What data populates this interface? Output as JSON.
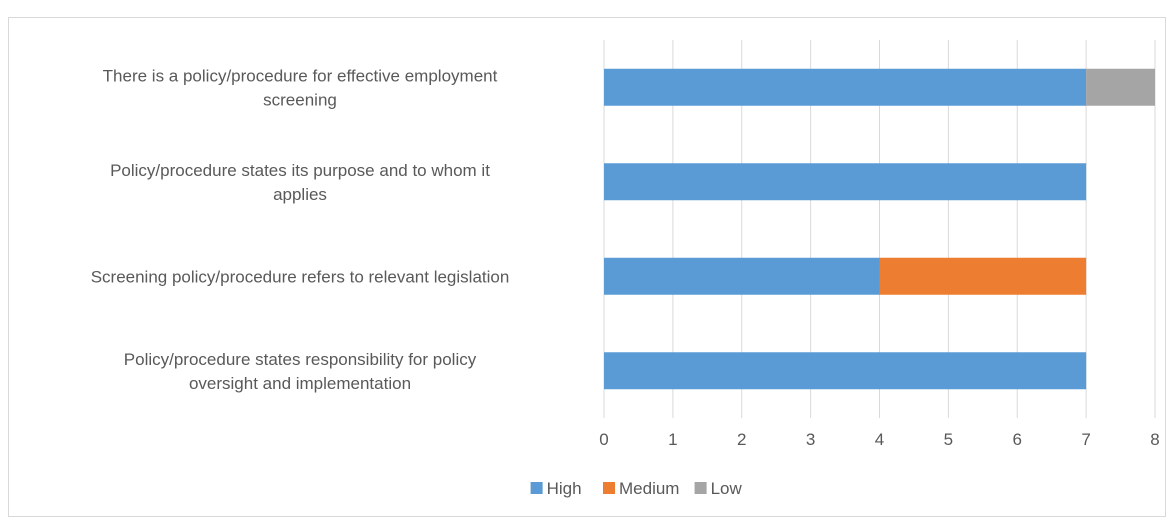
{
  "chart_data": {
    "type": "bar",
    "orientation": "horizontal",
    "stacked": true,
    "categories": [
      [
        "There is a policy/procedure for effective employment",
        "screening"
      ],
      [
        "Policy/procedure states its purpose and to whom it",
        "applies"
      ],
      [
        "Screening policy/procedure refers to relevant legislation"
      ],
      [
        "Policy/procedure states responsibility for policy",
        "oversight and implementation"
      ]
    ],
    "series": [
      {
        "name": "High",
        "color": "#5b9bd5",
        "values": [
          7,
          7,
          4,
          7
        ]
      },
      {
        "name": "Medium",
        "color": "#ed7d31",
        "values": [
          0,
          0,
          3,
          0
        ]
      },
      {
        "name": "Low",
        "color": "#a5a5a5",
        "values": [
          1,
          0,
          0,
          0
        ]
      }
    ],
    "xlim": [
      0,
      8
    ],
    "xticks": [
      "0",
      "1",
      "2",
      "3",
      "4",
      "5",
      "6",
      "7",
      "8"
    ],
    "grid": "vertical",
    "legend": "bottom",
    "title": "",
    "xlabel": "",
    "ylabel": ""
  }
}
